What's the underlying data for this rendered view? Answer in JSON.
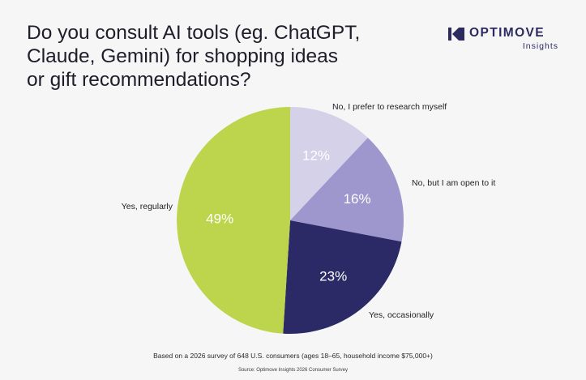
{
  "header": {
    "title_lines": [
      "Do you consult AI tools (eg. ChatGPT,",
      "Claude, Gemini) for shopping ideas",
      "or gift recommendations?"
    ]
  },
  "brand": {
    "name": "OPTIMOVE",
    "sub": "Insights",
    "logo_icon": "optimove-logo-icon",
    "color": "#2c2b60"
  },
  "chart_data": {
    "type": "pie",
    "title": "",
    "start_angle_deg": 0,
    "direction": "clockwise",
    "slices": [
      {
        "label": "No, I prefer to research myself",
        "value": 12,
        "value_label": "12%",
        "color": "#d4d1e9"
      },
      {
        "label": "No, but I am open to it",
        "value": 16,
        "value_label": "16%",
        "color": "#9d97cd"
      },
      {
        "label": "Yes, occasionally",
        "value": 23,
        "value_label": "23%",
        "color": "#2b2a66"
      },
      {
        "label": "Yes, regularly",
        "value": 49,
        "value_label": "49%",
        "color": "#bcd54c"
      }
    ]
  },
  "footer": {
    "note": "Based on a 2026 survey of 648 U.S. consumers (ages 18–65, household income $75,000+)",
    "source": "Source: Optimove Insights 2026 Consumer Survey"
  }
}
